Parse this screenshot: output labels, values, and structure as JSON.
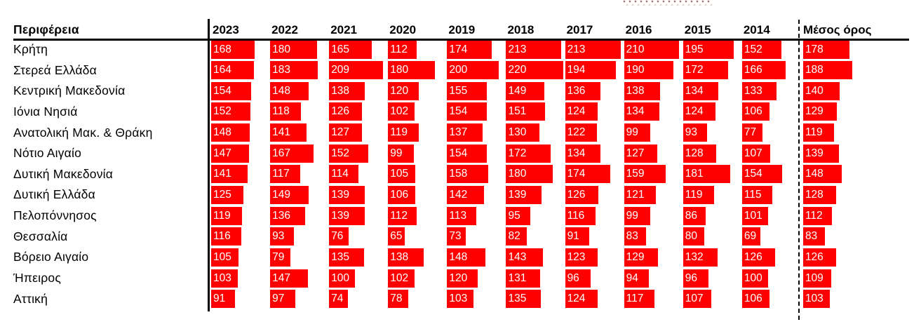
{
  "colors": {
    "bar": "#FE0000",
    "bar_text": "#FFFFFF",
    "rule": "#000000",
    "dotted_artifact": "#A87A7A"
  },
  "chart_data": {
    "type": "table",
    "title": "",
    "region_header": "Περιφέρεια",
    "average_header": "Μέσος όρος",
    "years": [
      "2023",
      "2022",
      "2021",
      "2020",
      "2019",
      "2018",
      "2017",
      "2016",
      "2015",
      "2014"
    ],
    "scale_max": 227,
    "bar_color": "#FE0000",
    "bar_text_color": "#FFFFFF",
    "rows": [
      {
        "region": "Κρήτη",
        "values": [
          168,
          180,
          165,
          112,
          174,
          213,
          213,
          210,
          195,
          152
        ],
        "average": 178
      },
      {
        "region": "Στερεά Ελλάδα",
        "values": [
          164,
          183,
          209,
          180,
          200,
          220,
          194,
          190,
          172,
          166
        ],
        "average": 188
      },
      {
        "region": "Κεντρική Μακεδονία",
        "values": [
          154,
          148,
          138,
          120,
          155,
          149,
          136,
          138,
          134,
          133
        ],
        "average": 140
      },
      {
        "region": "Ιόνια Νησιά",
        "values": [
          152,
          118,
          126,
          102,
          154,
          151,
          124,
          134,
          124,
          106
        ],
        "average": 129
      },
      {
        "region": "Ανατολική Μακ. & Θράκη",
        "values": [
          148,
          141,
          127,
          119,
          137,
          130,
          122,
          99,
          93,
          77
        ],
        "average": 119
      },
      {
        "region": "Νότιο Αιγαίο",
        "values": [
          147,
          167,
          152,
          99,
          154,
          172,
          134,
          127,
          128,
          107
        ],
        "average": 139
      },
      {
        "region": "Δυτική Μακεδονία",
        "values": [
          141,
          117,
          114,
          105,
          158,
          180,
          174,
          159,
          181,
          154
        ],
        "average": 148
      },
      {
        "region": "Δυτική Ελλάδα",
        "values": [
          125,
          149,
          139,
          106,
          142,
          139,
          126,
          121,
          119,
          115
        ],
        "average": 128
      },
      {
        "region": "Πελοπόννησος",
        "values": [
          119,
          136,
          139,
          112,
          113,
          95,
          116,
          99,
          86,
          101
        ],
        "average": 112
      },
      {
        "region": "Θεσσαλία",
        "values": [
          116,
          93,
          76,
          65,
          73,
          82,
          91,
          83,
          80,
          69
        ],
        "average": 83
      },
      {
        "region": "Βόρειο Αιγαίο",
        "values": [
          105,
          79,
          135,
          138,
          148,
          143,
          123,
          129,
          132,
          126
        ],
        "average": 126
      },
      {
        "region": "Ήπειρος",
        "values": [
          103,
          147,
          100,
          102,
          120,
          131,
          96,
          94,
          96,
          100
        ],
        "average": 109
      },
      {
        "region": "Αττική",
        "values": [
          91,
          97,
          74,
          78,
          103,
          135,
          124,
          117,
          107,
          106
        ],
        "average": 103
      }
    ]
  }
}
